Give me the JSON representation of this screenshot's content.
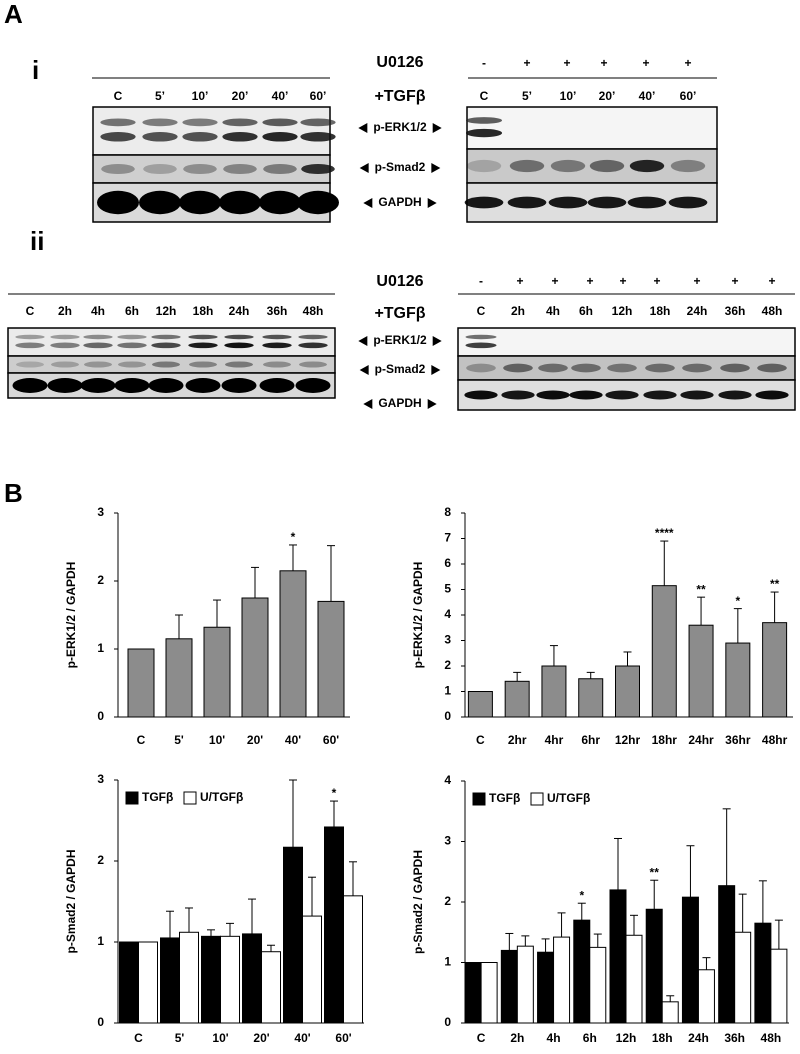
{
  "panel_a": {
    "label": "A",
    "sub_i": "i",
    "sub_ii": "ii",
    "blots_i": {
      "left_lanes": [
        "C",
        "5’",
        "10’",
        "20’",
        "40’",
        "60’"
      ],
      "inhibitor": "U0126",
      "treatment": "+TGFβ",
      "right_signs": [
        "-",
        "+",
        "+",
        "+",
        "+",
        "+"
      ],
      "right_lanes": [
        "C",
        "5’",
        "10’",
        "20’",
        "40’",
        "60’"
      ],
      "bands": [
        "p-ERK1/2",
        "p-Smad2",
        "GAPDH"
      ]
    },
    "blots_ii": {
      "left_lanes": [
        "C",
        "2h",
        "4h",
        "6h",
        "12h",
        "18h",
        "24h",
        "36h",
        "48h"
      ],
      "inhibitor": "U0126",
      "treatment": "+TGFβ",
      "right_signs": [
        "-",
        "+",
        "+",
        "+",
        "+",
        "+",
        "+",
        "+",
        "+"
      ],
      "right_lanes": [
        "C",
        "2h",
        "4h",
        "6h",
        "12h",
        "18h",
        "24h",
        "36h",
        "48h"
      ],
      "bands": [
        "p-ERK1/2",
        "p-Smad2",
        "GAPDH"
      ]
    }
  },
  "panel_b": {
    "label": "B"
  },
  "chart_data": [
    {
      "type": "bar",
      "ylabel": "p-ERK1/2 / GAPDH",
      "categories": [
        "C",
        "5'",
        "10'",
        "20'",
        "40'",
        "60'"
      ],
      "values": [
        1,
        1.15,
        1.32,
        1.75,
        2.15,
        1.7
      ],
      "errors": [
        null,
        0.35,
        0.4,
        0.45,
        0.38,
        0.82
      ],
      "significance": [
        null,
        null,
        null,
        null,
        "*",
        null
      ],
      "color": "#8c8c8c",
      "ylim": [
        0,
        3
      ],
      "yticks": [
        0,
        1,
        2,
        3
      ]
    },
    {
      "type": "bar",
      "ylabel": "p-ERK1/2 / GAPDH",
      "categories": [
        "C",
        "2hr",
        "4hr",
        "6hr",
        "12hr",
        "18hr",
        "24hr",
        "36hr",
        "48hr"
      ],
      "values": [
        1,
        1.4,
        2.0,
        1.5,
        2.0,
        5.15,
        3.6,
        2.9,
        3.7
      ],
      "errors": [
        null,
        0.35,
        0.8,
        0.25,
        0.55,
        1.75,
        1.1,
        1.35,
        1.2
      ],
      "significance": [
        null,
        null,
        null,
        null,
        null,
        "****",
        "**",
        "*",
        "**"
      ],
      "color": "#8c8c8c",
      "ylim": [
        0,
        8
      ],
      "yticks": [
        0,
        1,
        2,
        3,
        4,
        5,
        6,
        7,
        8
      ]
    },
    {
      "type": "bar",
      "ylabel": "p-Smad2 / GAPDH",
      "categories": [
        "C",
        "5'",
        "10'",
        "20'",
        "40'",
        "60'"
      ],
      "series": [
        {
          "name": "TGFβ",
          "color": "#000000",
          "values": [
            1,
            1.05,
            1.07,
            1.1,
            2.17,
            2.42
          ],
          "errors": [
            null,
            0.33,
            0.08,
            0.43,
            0.83,
            0.32
          ]
        },
        {
          "name": "U/TGFβ",
          "color": "#ffffff",
          "values": [
            1,
            1.12,
            1.07,
            0.88,
            1.32,
            1.57
          ],
          "errors": [
            null,
            0.3,
            0.16,
            0.08,
            0.48,
            0.42
          ]
        }
      ],
      "significance": [
        null,
        null,
        null,
        null,
        null,
        "*"
      ],
      "legend": "upper left",
      "ylim": [
        0,
        3
      ],
      "yticks": [
        0,
        1,
        2,
        3
      ]
    },
    {
      "type": "bar",
      "ylabel": "p-Smad2 / GAPDH",
      "categories": [
        "C",
        "2h",
        "4h",
        "6h",
        "12h",
        "18h",
        "24h",
        "36h",
        "48h"
      ],
      "series": [
        {
          "name": "TGFβ",
          "color": "#000000",
          "values": [
            1,
            1.2,
            1.17,
            1.7,
            2.2,
            1.88,
            2.08,
            2.27,
            1.65
          ],
          "errors": [
            null,
            0.28,
            0.22,
            0.28,
            0.85,
            0.48,
            0.85,
            1.27,
            0.7
          ]
        },
        {
          "name": "U/TGFβ",
          "color": "#ffffff",
          "values": [
            1,
            1.27,
            1.42,
            1.25,
            1.45,
            0.35,
            0.88,
            1.5,
            1.22
          ],
          "errors": [
            null,
            0.17,
            0.4,
            0.22,
            0.33,
            0.1,
            0.2,
            0.63,
            0.48
          ]
        }
      ],
      "significance": [
        null,
        null,
        null,
        "*",
        null,
        "**",
        null,
        null,
        null
      ],
      "legend": "upper left",
      "ylim": [
        0,
        4
      ],
      "yticks": [
        0,
        1,
        2,
        3,
        4
      ]
    }
  ]
}
